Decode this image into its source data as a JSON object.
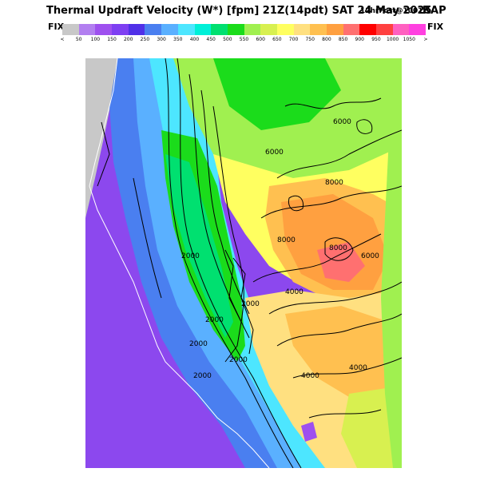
{
  "header": {
    "title": "Thermal Updraft Velocity (W*) [fpm] 21Z(14pdt) SAT 24 May 2025",
    "forecast_info": "12hrFcst@1001z",
    "model": "RAP"
  },
  "legend": {
    "fix_left": "FIX",
    "fix_right": "FIX",
    "lt_marker": "<",
    "gt_marker": ">",
    "colors": [
      "#c8c8c8",
      "#b27ff0",
      "#9e50ef",
      "#7e3ff2",
      "#5030e8",
      "#4a7ff0",
      "#5ab0ff",
      "#4de6ff",
      "#00f0d8",
      "#00e070",
      "#1bdc1b",
      "#a0f050",
      "#d8f050",
      "#ffff60",
      "#ffe080",
      "#ffc050",
      "#ffa040",
      "#ff7070",
      "#ff0000",
      "#ff4040",
      "#ff60c0",
      "#ff40e0"
    ],
    "tick_labels": [
      "50",
      "100",
      "150",
      "200",
      "250",
      "300",
      "350",
      "400",
      "450",
      "500",
      "550",
      "600",
      "650",
      "700",
      "750",
      "800",
      "850",
      "900",
      "950",
      "1000",
      "1050"
    ]
  },
  "map": {
    "contour_labels": [
      "6000",
      "6000",
      "8000",
      "8000",
      "8000",
      "2000",
      "2000",
      "2000",
      "2000",
      "2000",
      "2000",
      "4000",
      "4000",
      "4000",
      "6000"
    ]
  }
}
